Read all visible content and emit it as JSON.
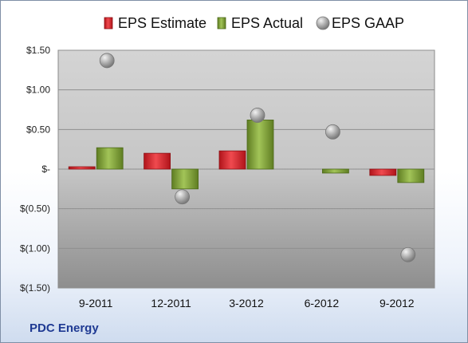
{
  "company_label": "PDC Energy",
  "colors": {
    "estimate": "#d81f26",
    "actual": "#7ea033",
    "gaap": "#a6a6a6",
    "label_blue": "#1f3a93"
  },
  "chart_data": {
    "type": "bar",
    "categories": [
      "9-2011",
      "12-2011",
      "3-2012",
      "6-2012",
      "9-2012"
    ],
    "series": [
      {
        "name": "EPS Estimate",
        "kind": "bar",
        "values": [
          0.03,
          0.2,
          0.23,
          null,
          -0.08
        ]
      },
      {
        "name": "EPS Actual",
        "kind": "bar",
        "values": [
          0.27,
          -0.25,
          0.62,
          -0.05,
          -0.17
        ]
      },
      {
        "name": "EPS GAAP",
        "kind": "scatter",
        "values": [
          1.37,
          -0.35,
          0.68,
          0.47,
          -1.08
        ]
      }
    ],
    "ylim": [
      -1.5,
      1.5
    ],
    "yticks": [
      1.5,
      1.0,
      0.5,
      0,
      -0.5,
      -1.0,
      -1.5
    ],
    "ytick_labels": [
      "$1.50",
      "$1.00",
      "$0.50",
      "$-",
      "$(0.50)",
      "$(1.00)",
      "$(1.50)"
    ],
    "legend_position": "top",
    "grid": true,
    "title": "",
    "xlabel": "",
    "ylabel": ""
  }
}
